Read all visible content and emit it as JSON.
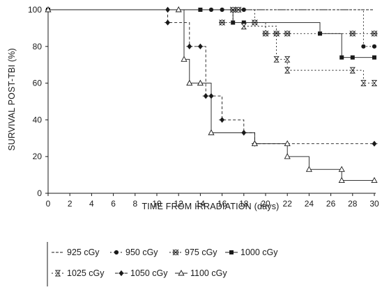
{
  "chart_data": {
    "type": "line",
    "title": "",
    "xlabel": "TIME FROM IRRADIATION (days)",
    "ylabel": "SURVIVAL POST-TBI (%)",
    "xlim": [
      0,
      30
    ],
    "ylim": [
      0,
      100
    ],
    "xticks": [
      "0",
      "2",
      "4",
      "6",
      "8",
      "10",
      "12",
      "14",
      "16",
      "18",
      "20",
      "22",
      "24",
      "26",
      "28",
      "30"
    ],
    "yticks": [
      "0",
      "20",
      "40",
      "60",
      "80",
      "100"
    ],
    "grid": false,
    "step": true,
    "legend_position": "bottom",
    "series": [
      {
        "name": "925 cGy",
        "marker": "none",
        "dash": "4 2",
        "x": [
          0,
          15,
          30
        ],
        "y": [
          100,
          100,
          100
        ]
      },
      {
        "name": "950 cGy",
        "marker": "filled-circle",
        "dash": "2 3",
        "x": [
          15,
          16,
          18,
          29,
          30
        ],
        "y": [
          100,
          100,
          100,
          80,
          80
        ]
      },
      {
        "name": "975 cGy",
        "marker": "star-circle",
        "dash": "2 3",
        "x": [
          16,
          17,
          17.5,
          19,
          20,
          21,
          22,
          28,
          30
        ],
        "y": [
          93,
          100,
          100,
          93,
          87,
          87,
          87,
          87,
          87
        ]
      },
      {
        "name": "1000 cGy",
        "marker": "filled-square",
        "dash": "",
        "x": [
          0,
          14,
          17,
          18,
          25,
          27,
          28,
          30
        ],
        "y": [
          100,
          100,
          93,
          93,
          87,
          74,
          74,
          74
        ]
      },
      {
        "name": "1025 cGy",
        "marker": "hourglass",
        "dash": "2 3",
        "x": [
          18,
          21,
          22,
          22,
          28,
          29,
          30
        ],
        "y": [
          91,
          73,
          73,
          67,
          67,
          60,
          60
        ]
      },
      {
        "name": "1050 cGy",
        "marker": "filled-diamond",
        "dash": "4 3",
        "x": [
          11,
          11,
          13,
          14,
          14.5,
          15,
          16,
          18,
          19,
          30
        ],
        "y": [
          100,
          93,
          80,
          80,
          53,
          53,
          40,
          33,
          27,
          27
        ]
      },
      {
        "name": "1100 cGy",
        "marker": "open-triangle",
        "dash": "",
        "x": [
          0,
          12,
          12.5,
          13,
          14,
          15,
          19,
          22,
          22,
          24,
          27,
          27,
          30
        ],
        "y": [
          100,
          100,
          73,
          60,
          60,
          33,
          27,
          27,
          20,
          13,
          13,
          7,
          7
        ]
      }
    ]
  }
}
